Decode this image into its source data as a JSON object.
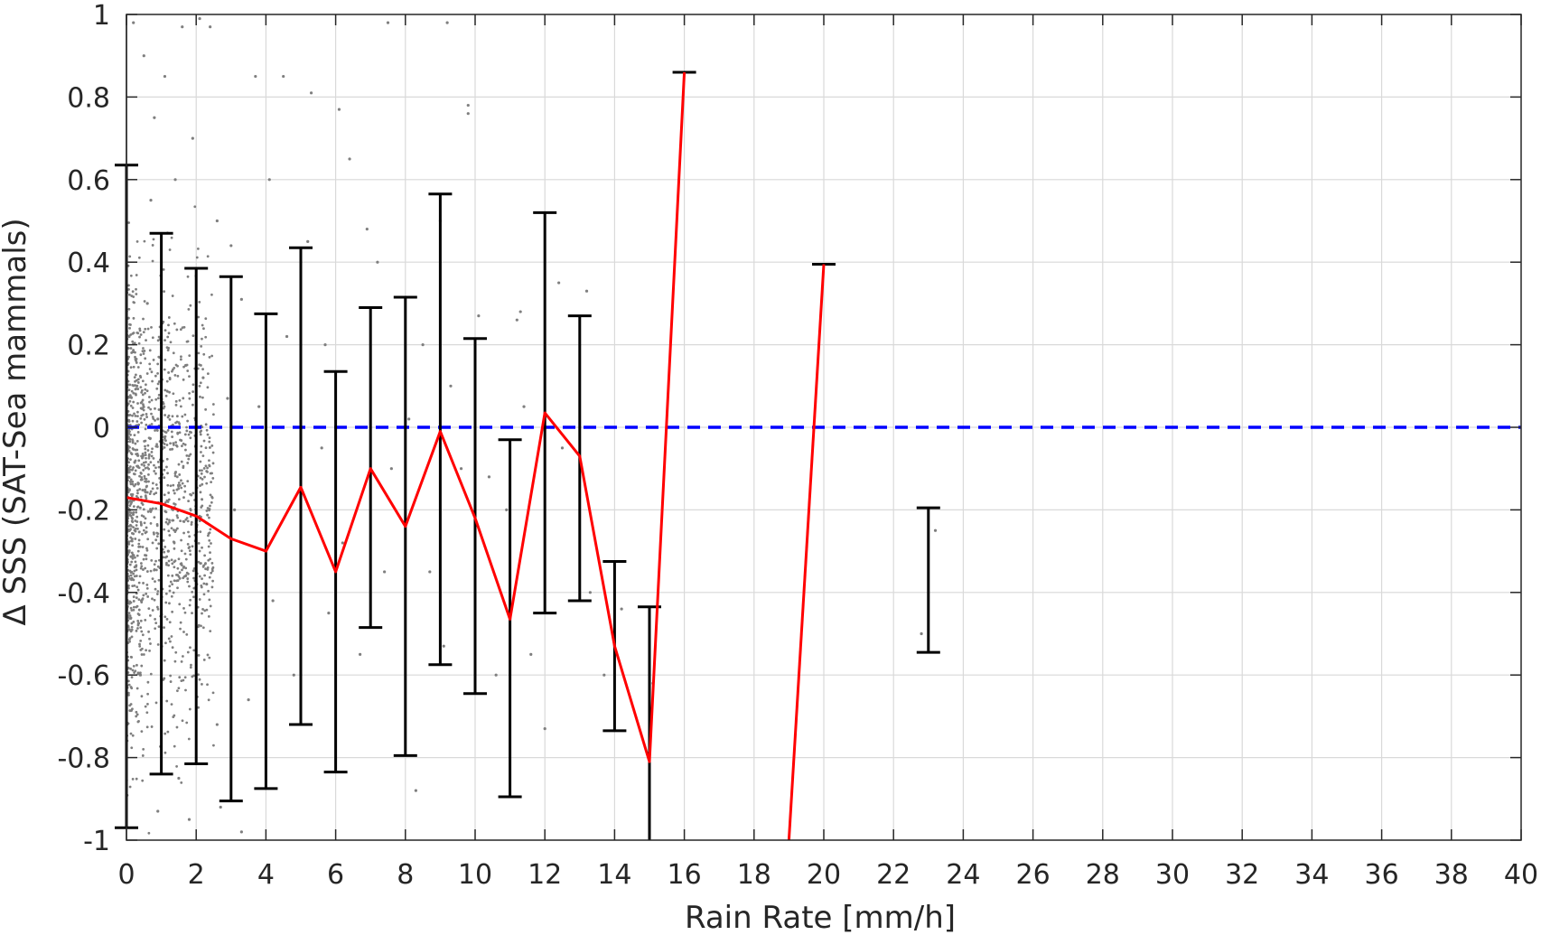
{
  "chart_data": {
    "type": "scatter",
    "title": "",
    "xlabel": "Rain Rate [mm/h]",
    "ylabel": "Δ SSS (SAT-Sea mammals)",
    "xlim": [
      0,
      40
    ],
    "ylim": [
      -1,
      1
    ],
    "xticks": [
      0,
      2,
      4,
      6,
      8,
      10,
      12,
      14,
      16,
      18,
      20,
      22,
      24,
      26,
      28,
      30,
      32,
      34,
      36,
      38,
      40
    ],
    "yticks": [
      -1,
      -0.8,
      -0.6,
      -0.4,
      -0.2,
      0,
      0.2,
      0.4,
      0.6,
      0.8,
      1
    ],
    "ytick_labels": [
      "-1",
      "-0.8",
      "-0.6",
      "-0.4",
      "-0.2",
      "0",
      "0.2",
      "0.4",
      "0.6",
      "0.8",
      "1"
    ],
    "xtick_labels": [
      "0",
      "2",
      "4",
      "6",
      "8",
      "10",
      "12",
      "14",
      "16",
      "18",
      "20",
      "22",
      "24",
      "26",
      "28",
      "30",
      "32",
      "34",
      "36",
      "38",
      "40"
    ],
    "grid": true,
    "colors": {
      "mean_line": "#ff0000",
      "zero_line": "#0000ff",
      "error_bars": "#000000",
      "points": "#7f7f7f",
      "grid": "#d9d9d9",
      "axis": "#262626"
    },
    "zero_line": {
      "y": 0,
      "style": "dashed"
    },
    "mean_line": {
      "segments": [
        [
          [
            0,
            -0.17
          ],
          [
            1,
            -0.185
          ],
          [
            2,
            -0.215
          ],
          [
            3,
            -0.27
          ],
          [
            4,
            -0.3
          ],
          [
            5,
            -0.145
          ],
          [
            6,
            -0.35
          ],
          [
            7,
            -0.1
          ],
          [
            8,
            -0.24
          ],
          [
            9,
            -0.01
          ],
          [
            10,
            -0.22
          ],
          [
            11,
            -0.465
          ],
          [
            12,
            0.035
          ],
          [
            13,
            -0.07
          ],
          [
            14,
            -0.53
          ],
          [
            15,
            -0.81
          ],
          [
            16,
            0.86
          ]
        ],
        [
          [
            19,
            -1.0
          ],
          [
            20,
            0.395
          ]
        ]
      ]
    },
    "error_bars": [
      {
        "x": 0,
        "low": -0.97,
        "high": 0.635
      },
      {
        "x": 1,
        "low": -0.84,
        "high": 0.47
      },
      {
        "x": 2,
        "low": -0.815,
        "high": 0.385
      },
      {
        "x": 3,
        "low": -0.905,
        "high": 0.365
      },
      {
        "x": 4,
        "low": -0.875,
        "high": 0.275
      },
      {
        "x": 5,
        "low": -0.72,
        "high": 0.435
      },
      {
        "x": 6,
        "low": -0.835,
        "high": 0.135
      },
      {
        "x": 7,
        "low": -0.485,
        "high": 0.29
      },
      {
        "x": 8,
        "low": -0.795,
        "high": 0.315
      },
      {
        "x": 9,
        "low": -0.575,
        "high": 0.565
      },
      {
        "x": 10,
        "low": -0.645,
        "high": 0.215
      },
      {
        "x": 11,
        "low": -0.895,
        "high": -0.03
      },
      {
        "x": 12,
        "low": -0.45,
        "high": 0.52
      },
      {
        "x": 13,
        "low": -0.42,
        "high": 0.27
      },
      {
        "x": 14,
        "low": -0.735,
        "high": -0.325
      },
      {
        "x": 15,
        "low": -1.0,
        "high": -0.435,
        "no_low_cap": true
      },
      {
        "x": 16,
        "high": 0.86,
        "cap_only": true
      },
      {
        "x": 20,
        "high": 0.395,
        "cap_only": true
      },
      {
        "x": 23,
        "low": -0.545,
        "high": -0.195
      }
    ],
    "scatter": {
      "description_free": true,
      "dense_region_x": [
        0,
        2.5
      ],
      "points": [
        [
          0.2,
          0.98
        ],
        [
          0.5,
          0.9
        ],
        [
          0.8,
          0.75
        ],
        [
          1.1,
          0.85
        ],
        [
          1.6,
          0.97
        ],
        [
          2.1,
          0.99
        ],
        [
          2.4,
          0.97
        ],
        [
          3.7,
          0.85
        ],
        [
          4.5,
          0.85
        ],
        [
          5.3,
          0.81
        ],
        [
          6.1,
          0.77
        ],
        [
          7.5,
          0.98
        ],
        [
          9.2,
          0.98
        ],
        [
          9.8,
          0.78
        ],
        [
          9.8,
          0.76
        ],
        [
          9.0,
          0.5
        ],
        [
          6.4,
          0.65
        ],
        [
          5.2,
          0.45
        ],
        [
          10.1,
          0.27
        ],
        [
          11.2,
          0.26
        ],
        [
          11.3,
          0.28
        ],
        [
          12.4,
          0.35
        ],
        [
          13.2,
          0.33
        ],
        [
          5.7,
          0.2
        ],
        [
          7.2,
          0.4
        ],
        [
          8.5,
          0.2
        ],
        [
          6.9,
          0.48
        ],
        [
          4.6,
          0.22
        ],
        [
          3.3,
          0.31
        ],
        [
          2.6,
          0.5
        ],
        [
          1.9,
          0.7
        ],
        [
          1.4,
          0.6
        ],
        [
          0.7,
          0.55
        ],
        [
          2.2,
          0.12
        ],
        [
          3.8,
          0.05
        ],
        [
          5.6,
          -0.05
        ],
        [
          7.6,
          -0.1
        ],
        [
          9.6,
          -0.1
        ],
        [
          10.4,
          -0.12
        ],
        [
          8.7,
          -0.35
        ],
        [
          7.4,
          -0.35
        ],
        [
          6.7,
          -0.55
        ],
        [
          5.8,
          -0.45
        ],
        [
          4.8,
          -0.6
        ],
        [
          3.5,
          -0.66
        ],
        [
          2.6,
          -0.72
        ],
        [
          1.5,
          -0.85
        ],
        [
          0.9,
          -0.93
        ],
        [
          1.8,
          -0.95
        ],
        [
          2.7,
          -0.92
        ],
        [
          3.3,
          -0.98
        ],
        [
          8.3,
          -0.88
        ],
        [
          9.1,
          -0.53
        ],
        [
          10.6,
          -0.6
        ],
        [
          11.6,
          -0.55
        ],
        [
          12.0,
          -0.73
        ],
        [
          13.3,
          -0.4
        ],
        [
          14.2,
          -0.44
        ],
        [
          22.8,
          -0.5
        ],
        [
          23.2,
          -0.25
        ],
        [
          15.1,
          -0.62
        ],
        [
          13.7,
          -0.6
        ],
        [
          12.5,
          -0.05
        ],
        [
          11.4,
          0.05
        ],
        [
          10.9,
          -0.2
        ],
        [
          9.3,
          0.1
        ],
        [
          8.1,
          0.02
        ],
        [
          6.2,
          -0.28
        ],
        [
          4.2,
          -0.42
        ],
        [
          3.1,
          -0.2
        ],
        [
          2.3,
          -0.38
        ],
        [
          1.2,
          -0.3
        ],
        [
          0.4,
          -0.6
        ],
        [
          0.6,
          0.3
        ],
        [
          0.3,
          0.1
        ],
        [
          1.7,
          0.15
        ],
        [
          2.9,
          0.07
        ],
        [
          4.1,
          0.6
        ],
        [
          3.0,
          0.44
        ],
        [
          0.9,
          0.02
        ]
      ]
    }
  }
}
